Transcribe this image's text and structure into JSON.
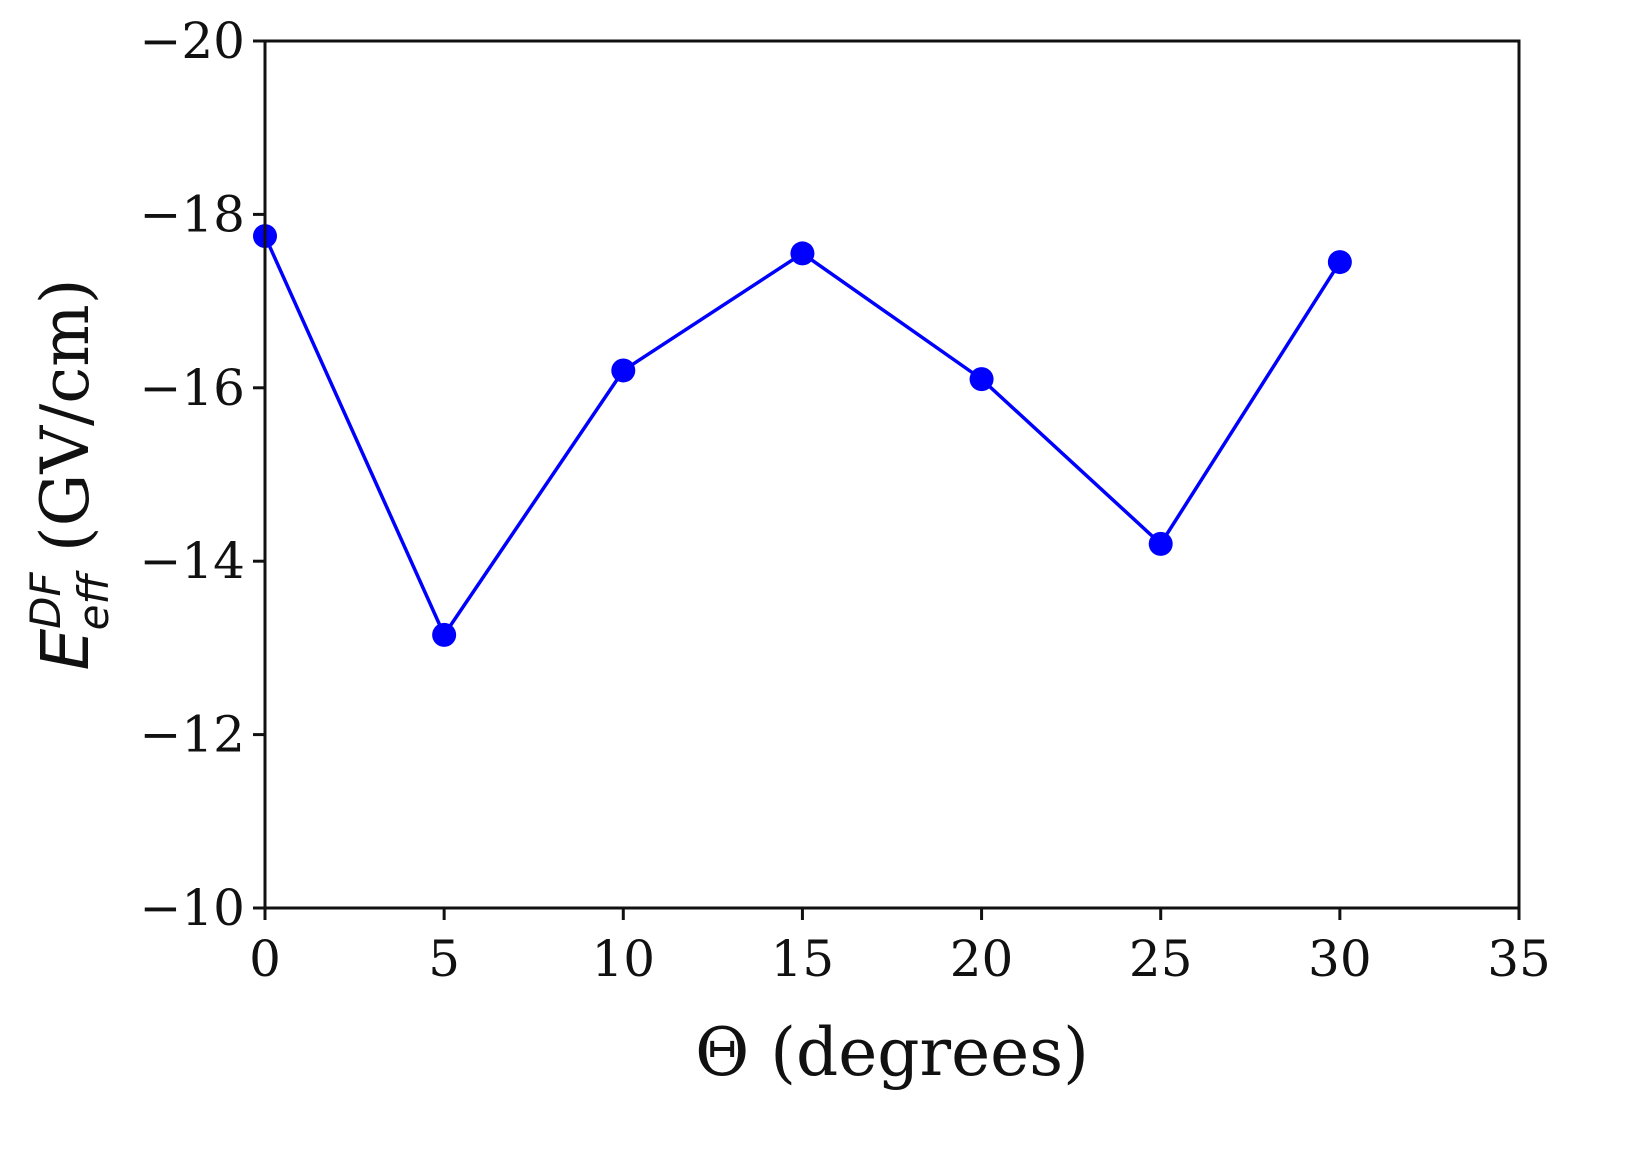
{
  "chart_data": {
    "type": "line",
    "title": "",
    "xlabel": "Θ (degrees)",
    "ylabel": {
      "symbol": "E",
      "superscript": "DF",
      "subscript": "eff",
      "units": "(GV/cm)"
    },
    "xlim": [
      0,
      35
    ],
    "ylim": [
      -20,
      -10
    ],
    "y_inverted": true,
    "xticks": [
      0,
      5,
      10,
      15,
      20,
      25,
      30,
      35
    ],
    "yticks": [
      -20,
      -18,
      -16,
      -14,
      -12,
      -10
    ],
    "xtick_labels": [
      "0",
      "5",
      "10",
      "15",
      "20",
      "25",
      "30",
      "35"
    ],
    "ytick_labels": [
      "−20",
      "−18",
      "−16",
      "−14",
      "−12",
      "−10"
    ],
    "grid": false,
    "legend": "none",
    "series": [
      {
        "color": "#0000ff",
        "marker": "circle",
        "x": [
          0,
          5,
          10,
          15,
          20,
          25,
          30
        ],
        "y": [
          -17.75,
          -13.15,
          -16.2,
          -17.55,
          -16.1,
          -14.2,
          -17.45
        ]
      }
    ]
  }
}
